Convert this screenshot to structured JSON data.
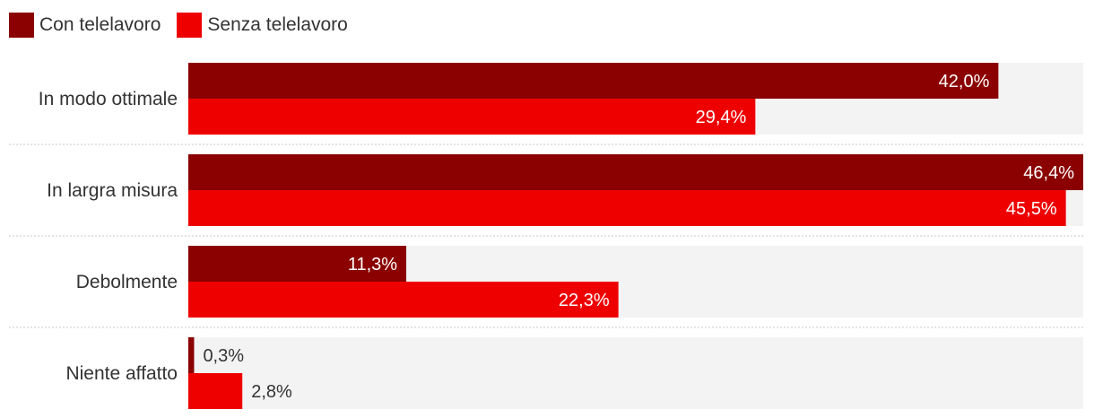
{
  "chart_data": {
    "type": "bar",
    "orientation": "horizontal",
    "categories": [
      "In modo ottimale",
      "In largra misura",
      "Debolmente",
      "Niente affatto"
    ],
    "series": [
      {
        "name": "Con telelavoro",
        "values": [
          42.0,
          46.4,
          11.3,
          0.3
        ],
        "labels": [
          "42,0%",
          "46,4%",
          "11,3%",
          "0,3%"
        ],
        "color": "#8b0000"
      },
      {
        "name": "Senza telelavoro",
        "values": [
          29.4,
          45.5,
          22.3,
          2.8
        ],
        "labels": [
          "29,4%",
          "45,5%",
          "22,3%",
          "2,8%"
        ],
        "color": "#ee0000"
      }
    ],
    "xlim": [
      0,
      46.4
    ],
    "legend_position": "top-left",
    "grid": false,
    "track_color": "#f3f3f3",
    "separator_color": "#c8c8c8"
  }
}
